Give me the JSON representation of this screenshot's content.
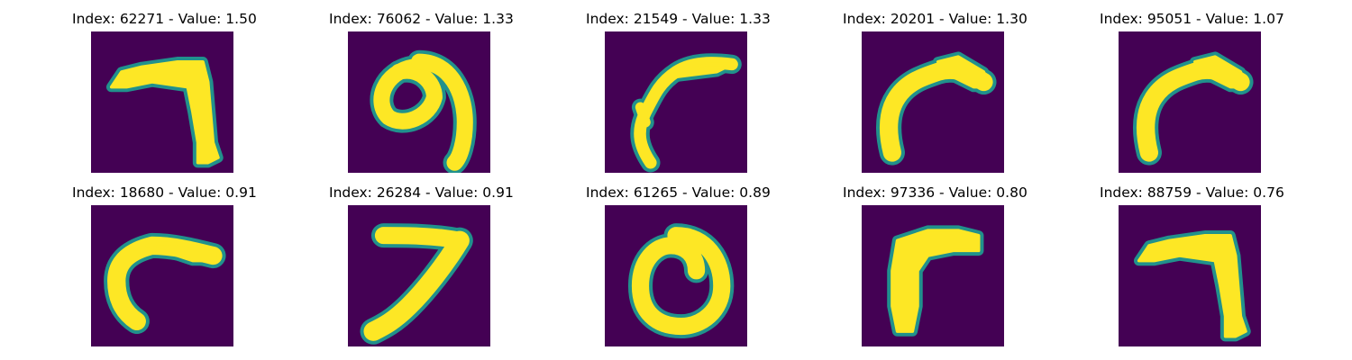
{
  "figure": {
    "background_color": "#440154",
    "stroke_color": "#fde725",
    "edge_color": "#21918c",
    "panels": [
      {
        "index": "62271",
        "value": "1.50",
        "title": "Index: 62271 - Value: 1.50",
        "glyph": "seven-hook"
      },
      {
        "index": "76062",
        "value": "1.33",
        "title": "Index: 76062 - Value: 1.33",
        "glyph": "nine-curl"
      },
      {
        "index": "21549",
        "value": "1.33",
        "title": "Index: 21549 - Value: 1.33",
        "glyph": "arc-thin"
      },
      {
        "index": "20201",
        "value": "1.30",
        "title": "Index: 20201 - Value: 1.30",
        "glyph": "arc-thick"
      },
      {
        "index": "95051",
        "value": "1.07",
        "title": "Index: 95051 - Value: 1.07",
        "glyph": "arc-thick"
      },
      {
        "index": "18680",
        "value": "0.91",
        "title": "Index: 18680 - Value: 0.91",
        "glyph": "c-curve"
      },
      {
        "index": "26284",
        "value": "0.91",
        "title": "Index: 26284 - Value: 0.91",
        "glyph": "seven-slant"
      },
      {
        "index": "61265",
        "value": "0.89",
        "title": "Index: 61265 - Value: 0.89",
        "glyph": "zero"
      },
      {
        "index": "97336",
        "value": "0.80",
        "title": "Index: 97336 - Value: 0.80",
        "glyph": "seven-block"
      },
      {
        "index": "88759",
        "value": "0.76",
        "title": "Index: 88759 - Value: 0.76",
        "glyph": "seven-hook"
      }
    ]
  }
}
